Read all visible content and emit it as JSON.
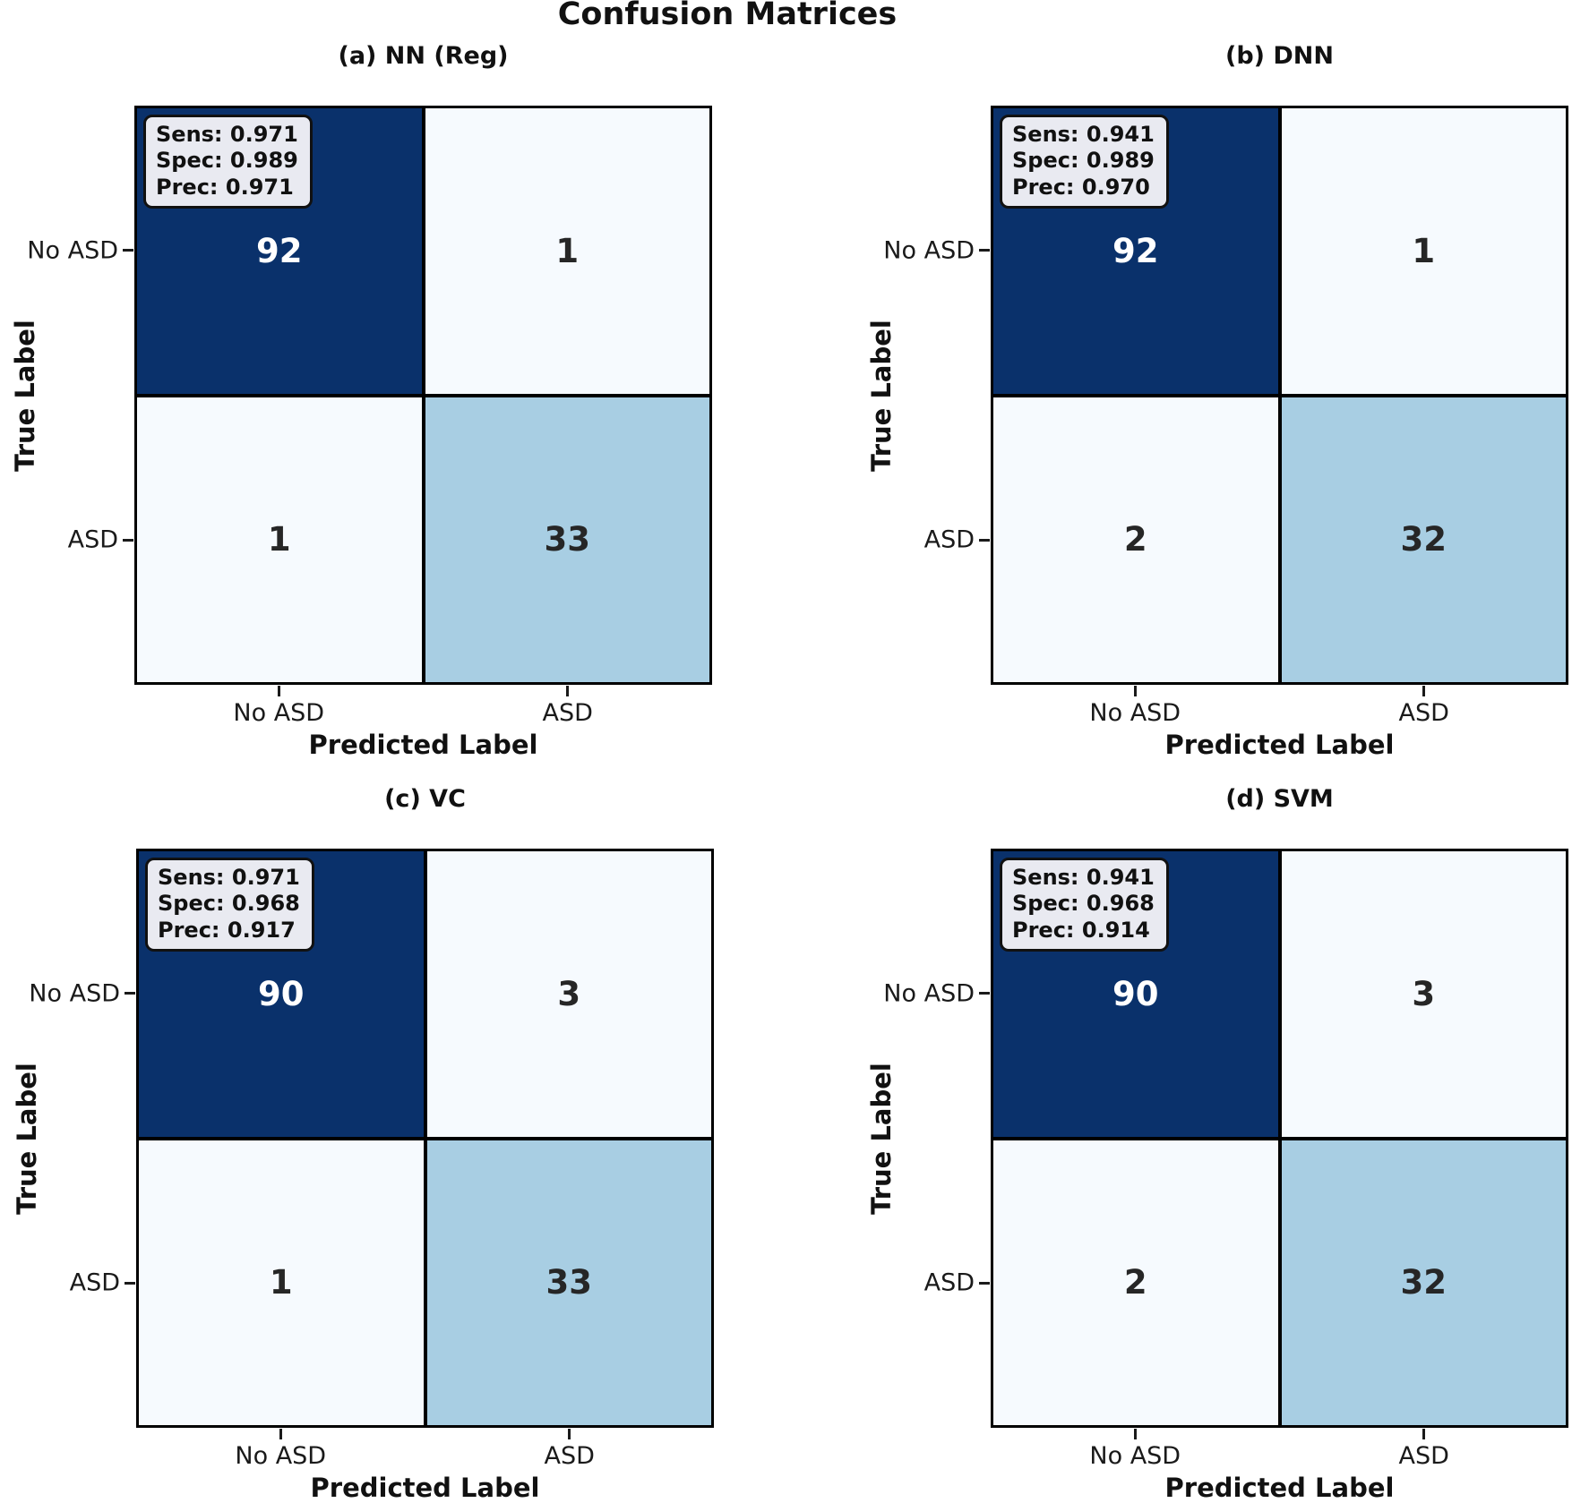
{
  "figure_title": "Confusion Matrices",
  "colors": {
    "cell_dark": "#0a316b",
    "cell_light": "#f6fafe",
    "cell_mid": "#a8cee3",
    "stats_bg": "#e9eaf1",
    "text_dark": "#262626",
    "text_light": "#ffffff"
  },
  "axis": {
    "xlabel": "Predicted Label",
    "ylabel": "True Label",
    "class_labels": [
      "No ASD",
      "ASD"
    ]
  },
  "panels": [
    {
      "title": "(a) NN (Reg)",
      "stats": [
        "Sens: 0.971",
        "Spec: 0.989",
        "Prec: 0.971"
      ],
      "cells": [
        "92",
        "1",
        "1",
        "33"
      ]
    },
    {
      "title": "(b) DNN",
      "stats": [
        "Sens: 0.941",
        "Spec: 0.989",
        "Prec: 0.970"
      ],
      "cells": [
        "92",
        "1",
        "2",
        "32"
      ]
    },
    {
      "title": "(c) VC",
      "stats": [
        "Sens: 0.971",
        "Spec: 0.968",
        "Prec: 0.917"
      ],
      "cells": [
        "90",
        "3",
        "1",
        "33"
      ]
    },
    {
      "title": "(d) SVM",
      "stats": [
        "Sens: 0.941",
        "Spec: 0.968",
        "Prec: 0.914"
      ],
      "cells": [
        "90",
        "3",
        "2",
        "32"
      ]
    }
  ],
  "chart_data": [
    {
      "type": "heatmap",
      "title": "(a) NN (Reg)",
      "suptitle": "Confusion Matrices",
      "xlabel": "Predicted Label",
      "ylabel": "True Label",
      "x_categories": [
        "No ASD",
        "ASD"
      ],
      "y_categories": [
        "No ASD",
        "ASD"
      ],
      "matrix": [
        [
          92,
          1
        ],
        [
          1,
          33
        ]
      ],
      "metrics": {
        "sensitivity": 0.971,
        "specificity": 0.989,
        "precision": 0.971
      },
      "colormap": "Blues",
      "grid": false,
      "legend": false
    },
    {
      "type": "heatmap",
      "title": "(b) DNN",
      "xlabel": "Predicted Label",
      "ylabel": "True Label",
      "x_categories": [
        "No ASD",
        "ASD"
      ],
      "y_categories": [
        "No ASD",
        "ASD"
      ],
      "matrix": [
        [
          92,
          1
        ],
        [
          2,
          32
        ]
      ],
      "metrics": {
        "sensitivity": 0.941,
        "specificity": 0.989,
        "precision": 0.97
      },
      "colormap": "Blues",
      "grid": false,
      "legend": false
    },
    {
      "type": "heatmap",
      "title": "(c) VC",
      "xlabel": "Predicted Label",
      "ylabel": "True Label",
      "x_categories": [
        "No ASD",
        "ASD"
      ],
      "y_categories": [
        "No ASD",
        "ASD"
      ],
      "matrix": [
        [
          90,
          3
        ],
        [
          1,
          33
        ]
      ],
      "metrics": {
        "sensitivity": 0.971,
        "specificity": 0.968,
        "precision": 0.917
      },
      "colormap": "Blues",
      "grid": false,
      "legend": false
    },
    {
      "type": "heatmap",
      "title": "(d) SVM",
      "xlabel": "Predicted Label",
      "ylabel": "True Label",
      "x_categories": [
        "No ASD",
        "ASD"
      ],
      "y_categories": [
        "No ASD",
        "ASD"
      ],
      "matrix": [
        [
          90,
          3
        ],
        [
          2,
          32
        ]
      ],
      "metrics": {
        "sensitivity": 0.941,
        "specificity": 0.968,
        "precision": 0.914
      },
      "colormap": "Blues",
      "grid": false,
      "legend": false
    }
  ]
}
